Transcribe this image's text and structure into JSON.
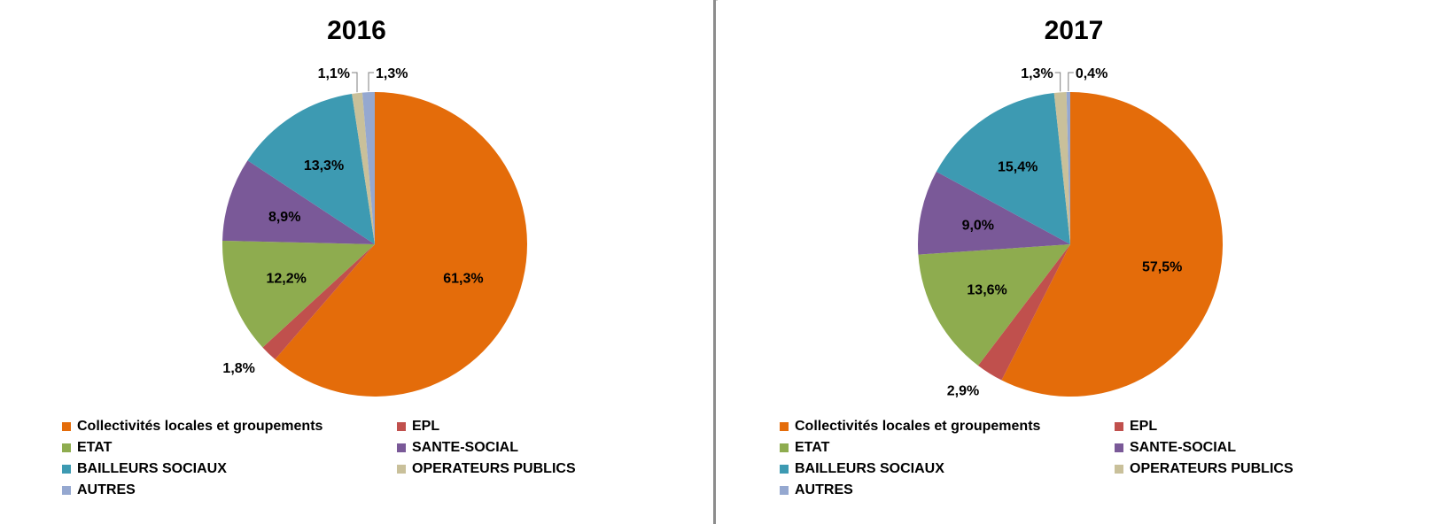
{
  "chart_data": [
    {
      "type": "pie",
      "title": "2016",
      "categories": [
        "Collectivités locales et groupements",
        "EPL",
        "ETAT",
        "SANTE-SOCIAL",
        "BAILLEURS SOCIAUX",
        "OPERATEURS PUBLICS",
        "AUTRES"
      ],
      "values": [
        61.3,
        1.8,
        12.2,
        8.9,
        13.3,
        1.1,
        1.3
      ],
      "labels": [
        "61,3%",
        "1,8%",
        "12,2%",
        "8,9%",
        "13,3%",
        "1,1%",
        "1,3%"
      ],
      "colors": [
        "#e46c0a",
        "#c0504d",
        "#8eac4f",
        "#7a5998",
        "#3d9ab2",
        "#c9c09a",
        "#95a8d0"
      ],
      "legend_position": "bottom"
    },
    {
      "type": "pie",
      "title": "2017",
      "categories": [
        "Collectivités locales et groupements",
        "EPL",
        "ETAT",
        "SANTE-SOCIAL",
        "BAILLEURS SOCIAUX",
        "OPERATEURS PUBLICS",
        "AUTRES"
      ],
      "values": [
        57.5,
        2.9,
        13.6,
        9.0,
        15.4,
        1.3,
        0.4
      ],
      "labels": [
        "57,5%",
        "2,9%",
        "13,6%",
        "9,0%",
        "15,4%",
        "1,3%",
        "0,4%"
      ],
      "colors": [
        "#e46c0a",
        "#c0504d",
        "#8eac4f",
        "#7a5998",
        "#3d9ab2",
        "#c9c09a",
        "#95a8d0"
      ],
      "legend_position": "bottom"
    }
  ]
}
